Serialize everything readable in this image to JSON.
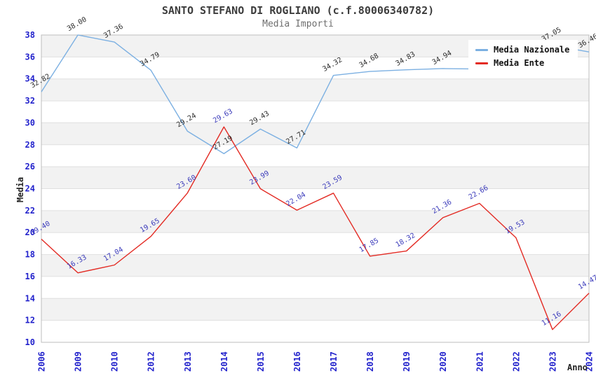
{
  "chart_data": {
    "type": "line",
    "title": "SANTO STEFANO DI ROGLIANO (c.f.80006340782)",
    "subtitle": "Media Importi",
    "xlabel": "Anno",
    "ylabel": "Media",
    "categories": [
      "2006",
      "2009",
      "2010",
      "2012",
      "2013",
      "2014",
      "2015",
      "2016",
      "2017",
      "2018",
      "2019",
      "2020",
      "2021",
      "2022",
      "2023",
      "2024"
    ],
    "series": [
      {
        "name": "Media Nazionale",
        "color": "#7cb0e2",
        "label_color": "#2d2d2d",
        "values": [
          32.82,
          38.0,
          37.36,
          34.79,
          29.24,
          27.19,
          29.43,
          27.71,
          34.32,
          34.68,
          34.83,
          34.94,
          34.9,
          35.9,
          37.05,
          36.46
        ],
        "labels": [
          "32.82",
          "38.00",
          "37.36",
          "34.79",
          "29.24",
          "27.19",
          "29.43",
          "27.71",
          "34.32",
          "34.68",
          "34.83",
          "34.94",
          null,
          null,
          "37.05",
          "36.46"
        ]
      },
      {
        "name": "Media Ente",
        "color": "#e32b24",
        "label_color": "#3c3cbb",
        "values": [
          19.4,
          16.33,
          17.04,
          19.65,
          23.6,
          29.63,
          23.99,
          22.04,
          23.59,
          17.85,
          18.32,
          21.36,
          22.66,
          19.53,
          11.16,
          14.47
        ],
        "labels": [
          "19.40",
          "16.33",
          "17.04",
          "19.65",
          "23.60",
          "29.63",
          "23.99",
          "22.04",
          "23.59",
          "17.85",
          "18.32",
          "21.36",
          "22.66",
          "19.53",
          "11.16",
          "14.47"
        ]
      }
    ],
    "ylim": [
      10,
      38
    ],
    "y_step": 2,
    "y_ticks": [
      "10",
      "12",
      "14",
      "16",
      "18",
      "20",
      "22",
      "24",
      "26",
      "28",
      "30",
      "32",
      "34",
      "36",
      "38"
    ],
    "grid": "horizontal-bands-alternating",
    "legend": {
      "position": "top-right",
      "items": [
        {
          "label": "Media Nazionale",
          "color": "#7cb0e2"
        },
        {
          "label": "Media Ente",
          "color": "#e32b24"
        }
      ]
    },
    "colors": {
      "band": "#f2f2f2",
      "grid": "#e0e0e0",
      "border": "#bdbdbd",
      "tick": "#2222cc"
    }
  }
}
